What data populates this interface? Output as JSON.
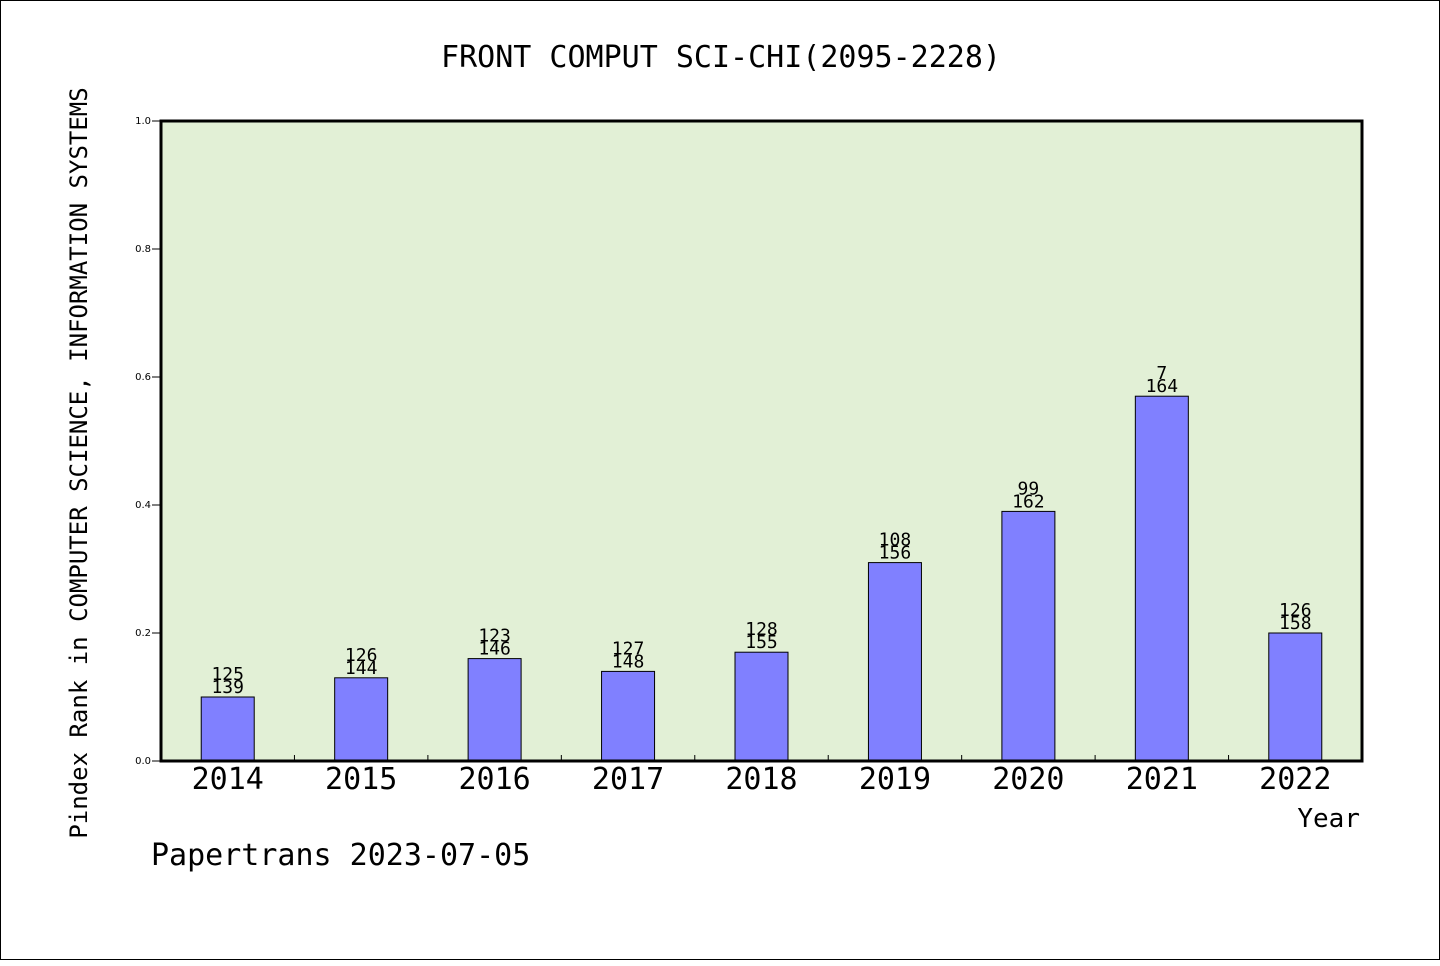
{
  "chart_data": {
    "type": "bar",
    "title": "FRONT COMPUT SCI-CHI(2095-2228)",
    "xlabel": "Year",
    "ylabel": "Pindex Rank in COMPUTER SCIENCE, INFORMATION SYSTEMS",
    "ylim": [
      0,
      1.0
    ],
    "yticks": [
      "0.0",
      "0.2",
      "0.4",
      "0.6",
      "0.8",
      "1.0"
    ],
    "categories": [
      "2014",
      "2015",
      "2016",
      "2017",
      "2018",
      "2019",
      "2020",
      "2021",
      "2022"
    ],
    "values": [
      0.1,
      0.13,
      0.16,
      0.14,
      0.17,
      0.31,
      0.39,
      0.57,
      0.2
    ],
    "labels_top": [
      "125",
      "126",
      "123",
      "127",
      "128",
      "108",
      "99",
      "7",
      "126"
    ],
    "labels_bottom": [
      "139",
      "144",
      "146",
      "148",
      "155",
      "156",
      "162",
      "164",
      "158"
    ],
    "grid": false,
    "colors": {
      "bar": "#8080ff",
      "plot_background": "#e2f0d6"
    }
  },
  "footer": "Papertrans 2023-07-05"
}
